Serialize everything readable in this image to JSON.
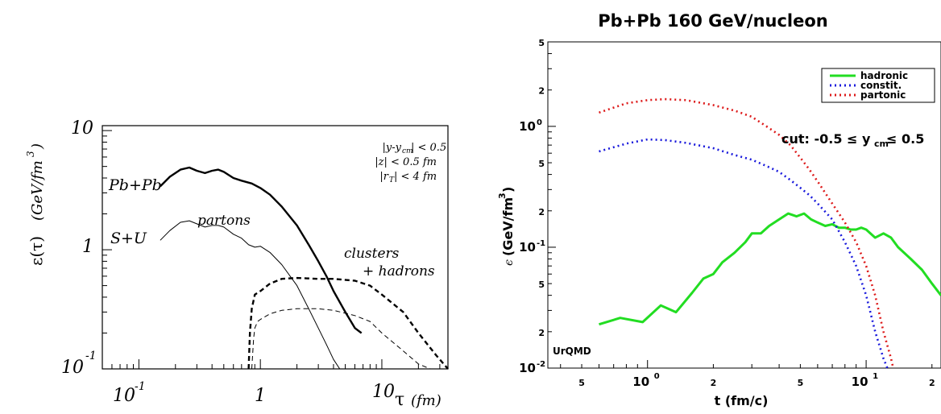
{
  "chart_data": [
    {
      "type": "line",
      "title": "",
      "xlabel_symbol": "τ",
      "xlabel_unit": "(fm)",
      "ylabel_symbol": "ε(τ)",
      "ylabel_unit": "(GeV/fm",
      "ylabel_unit_sup": "3",
      "ylabel_unit_close": ")",
      "x_scale": "log",
      "y_scale": "log",
      "xlim": [
        0.05,
        35
      ],
      "ylim": [
        0.1,
        11
      ],
      "x_ticks": [
        {
          "value": 0.1,
          "base": "10",
          "exp": "-1"
        },
        {
          "value": 1,
          "base": "1",
          "exp": ""
        },
        {
          "value": 10,
          "base": "10",
          "exp": ""
        }
      ],
      "y_ticks": [
        {
          "value": 10,
          "base": "10",
          "exp": ""
        },
        {
          "value": 1,
          "base": "1",
          "exp": ""
        },
        {
          "value": 0.1,
          "base": "10",
          "exp": "-1"
        }
      ],
      "cuts": {
        "line1": "|y-y",
        "line1_sub": "cm",
        "line1_tail": "| < 0.5",
        "line2": "|z| < 0.5 fm",
        "line3": "|r",
        "line3_sub": "T",
        "line3_tail": "| < 4 fm"
      },
      "labels": {
        "pbpb": "Pb+Pb",
        "su": "S+U",
        "partons": "partons",
        "clusters": "clusters",
        "hadrons": "+ hadrons"
      },
      "series": [
        {
          "name": "Pb+Pb partons",
          "style": "thick-solid",
          "x": [
            0.15,
            0.18,
            0.22,
            0.26,
            0.3,
            0.35,
            0.4,
            0.45,
            0.5,
            0.6,
            0.7,
            0.85,
            1.0,
            1.2,
            1.5,
            2.0,
            2.5,
            3.0,
            3.5,
            4.0,
            5.0,
            6.0,
            6.8
          ],
          "y": [
            3.4,
            4.1,
            4.7,
            4.9,
            4.6,
            4.4,
            4.6,
            4.7,
            4.5,
            4.0,
            3.8,
            3.6,
            3.3,
            2.9,
            2.3,
            1.6,
            1.1,
            0.8,
            0.6,
            0.45,
            0.3,
            0.22,
            0.2
          ]
        },
        {
          "name": "S+U partons",
          "style": "thin-solid",
          "x": [
            0.15,
            0.18,
            0.22,
            0.26,
            0.3,
            0.35,
            0.4,
            0.45,
            0.5,
            0.6,
            0.7,
            0.8,
            0.9,
            1.0,
            1.2,
            1.5,
            2.0,
            2.5,
            3.0,
            3.5,
            4.0,
            4.5
          ],
          "y": [
            1.2,
            1.45,
            1.7,
            1.75,
            1.65,
            1.55,
            1.6,
            1.6,
            1.55,
            1.35,
            1.25,
            1.1,
            1.05,
            1.07,
            0.95,
            0.75,
            0.5,
            0.32,
            0.22,
            0.16,
            0.12,
            0.1
          ]
        },
        {
          "name": "Pb+Pb clusters + hadrons",
          "style": "thick-dashed",
          "x": [
            0.8,
            0.82,
            0.85,
            0.9,
            1.0,
            1.2,
            1.5,
            2.0,
            3.0,
            4.0,
            6.0,
            8.0,
            10.0,
            15.0,
            20.0,
            28.0,
            35.0
          ],
          "y": [
            0.1,
            0.2,
            0.32,
            0.42,
            0.45,
            0.52,
            0.57,
            0.58,
            0.57,
            0.57,
            0.55,
            0.5,
            0.42,
            0.3,
            0.2,
            0.13,
            0.1
          ]
        },
        {
          "name": "S+U clusters + hadrons",
          "style": "thin-dashed",
          "x": [
            0.85,
            0.88,
            0.9,
            0.95,
            1.0,
            1.2,
            1.5,
            2.0,
            3.0,
            4.0,
            6.0,
            8.0,
            10.0,
            14.0,
            20.0,
            25.0
          ],
          "y": [
            0.1,
            0.18,
            0.22,
            0.25,
            0.26,
            0.29,
            0.31,
            0.32,
            0.32,
            0.31,
            0.28,
            0.25,
            0.2,
            0.15,
            0.11,
            0.1
          ]
        }
      ]
    },
    {
      "type": "line",
      "title": "Pb+Pb 160 GeV/nucleon",
      "xlabel": "t (fm/c)",
      "ylabel_symbol": "ϵ",
      "ylabel": "(GeV/fm",
      "ylabel_sup": "3",
      "ylabel_close": ")",
      "x_scale": "log",
      "y_scale": "log",
      "xlim": [
        0.35,
        22
      ],
      "ylim": [
        0.01,
        5
      ],
      "x_ticks": [
        {
          "value": 0.5,
          "label": "5",
          "exp": "",
          "major": false
        },
        {
          "value": 1,
          "label": "10",
          "exp": "0",
          "major": true
        },
        {
          "value": 2,
          "label": "2",
          "exp": "",
          "major": false
        },
        {
          "value": 5,
          "label": "5",
          "exp": "",
          "major": false
        },
        {
          "value": 10,
          "label": "10",
          "exp": "1",
          "major": true
        },
        {
          "value": 20,
          "label": "2",
          "exp": "",
          "major": false
        }
      ],
      "y_ticks": [
        {
          "value": 5,
          "label": "5",
          "exp": "",
          "major": false
        },
        {
          "value": 2,
          "label": "2",
          "exp": "",
          "major": false
        },
        {
          "value": 1,
          "label": "10",
          "exp": "0",
          "major": true
        },
        {
          "value": 0.5,
          "label": "5",
          "exp": "",
          "major": false
        },
        {
          "value": 0.2,
          "label": "2",
          "exp": "",
          "major": false
        },
        {
          "value": 0.1,
          "label": "10",
          "exp": "-1",
          "major": true
        },
        {
          "value": 0.05,
          "label": "5",
          "exp": "",
          "major": false
        },
        {
          "value": 0.02,
          "label": "2",
          "exp": "",
          "major": false
        },
        {
          "value": 0.01,
          "label": "10",
          "exp": "-2",
          "major": true
        }
      ],
      "cut_label": "cut: -0.5 ≤ y",
      "cut_sub": "cm",
      "cut_tail": " ≤ 0.5",
      "watermark": "UrQMD",
      "legend_position": "top-right",
      "series": [
        {
          "name": "hadronic",
          "color": "#22dd22",
          "style": "solid",
          "x": [
            0.6,
            0.75,
            0.95,
            1.15,
            1.35,
            1.6,
            1.8,
            2.0,
            2.2,
            2.5,
            2.8,
            3.0,
            3.3,
            3.6,
            4.0,
            4.4,
            4.8,
            5.2,
            5.6,
            6.0,
            6.5,
            7.0,
            7.5,
            8.0,
            8.5,
            9.0,
            9.5,
            10.0,
            11.0,
            12.0,
            13.0,
            14.0,
            16.0,
            18.0,
            20.0,
            22.0
          ],
          "y": [
            0.023,
            0.026,
            0.024,
            0.033,
            0.029,
            0.042,
            0.055,
            0.06,
            0.075,
            0.09,
            0.11,
            0.13,
            0.13,
            0.15,
            0.17,
            0.19,
            0.18,
            0.19,
            0.17,
            0.16,
            0.15,
            0.155,
            0.145,
            0.145,
            0.14,
            0.14,
            0.145,
            0.14,
            0.12,
            0.13,
            0.12,
            0.1,
            0.08,
            0.065,
            0.05,
            0.04
          ]
        },
        {
          "name": "constit.",
          "color": "#1a1adc",
          "style": "dotted",
          "x": [
            0.6,
            0.8,
            1.0,
            1.2,
            1.5,
            2.0,
            2.5,
            3.0,
            3.5,
            4.0,
            4.5,
            5.0,
            5.5,
            6.0,
            7.0,
            8.0,
            9.0,
            10.0,
            11.0,
            12.0,
            12.5
          ],
          "y": [
            0.62,
            0.72,
            0.78,
            0.77,
            0.73,
            0.66,
            0.58,
            0.53,
            0.47,
            0.42,
            0.36,
            0.31,
            0.27,
            0.23,
            0.17,
            0.11,
            0.07,
            0.04,
            0.02,
            0.012,
            0.01
          ]
        },
        {
          "name": "partonic",
          "color": "#dd1a1a",
          "style": "dotted",
          "x": [
            0.6,
            0.8,
            1.0,
            1.2,
            1.5,
            2.0,
            2.5,
            3.0,
            3.5,
            4.0,
            4.5,
            5.0,
            5.5,
            6.0,
            7.0,
            8.0,
            9.0,
            10.0,
            11.0,
            12.0,
            13.0,
            13.3
          ],
          "y": [
            1.3,
            1.55,
            1.65,
            1.68,
            1.65,
            1.5,
            1.35,
            1.2,
            1.0,
            0.85,
            0.7,
            0.55,
            0.44,
            0.35,
            0.23,
            0.16,
            0.11,
            0.07,
            0.04,
            0.02,
            0.012,
            0.01
          ]
        }
      ]
    }
  ]
}
